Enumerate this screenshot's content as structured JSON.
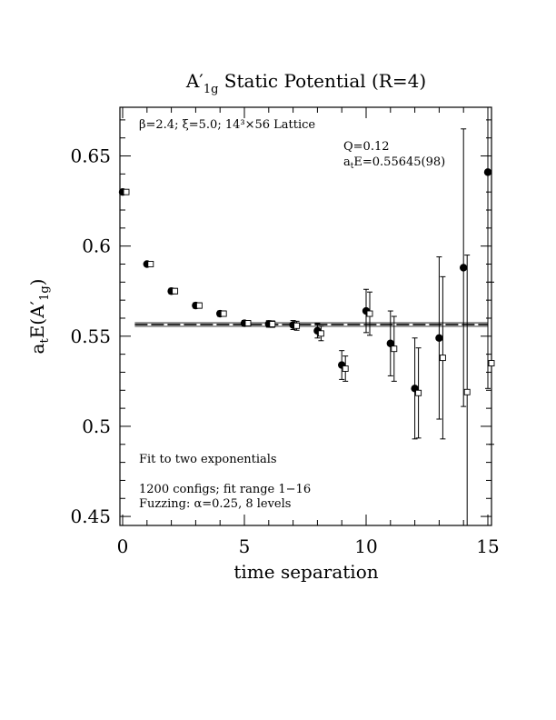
{
  "chart_data": {
    "type": "scatter",
    "title": {
      "main": "A",
      "prime": "′",
      "sub": "1g",
      "rest": " Static Potential (R=4)"
    },
    "xlabel": "time separation",
    "ylabel": {
      "a": "a",
      "t": "t",
      "e": "E(A",
      "prime": "′",
      "sub": "1g",
      "close": ")"
    },
    "xlim": [
      0,
      15
    ],
    "ylim": [
      0.445,
      0.677
    ],
    "x_ticks": [
      0,
      5,
      10,
      15
    ],
    "x_tick_labels": [
      "0",
      "5",
      "10",
      "15"
    ],
    "y_ticks": [
      0.45,
      0.5,
      0.55,
      0.6,
      0.65
    ],
    "y_tick_labels": [
      "0.45",
      "0.5",
      "0.55",
      "0.6",
      "0.65"
    ],
    "annotations": {
      "lattice": "β=2.4; ξ=5.0; 14³×56 Lattice",
      "q": "Q=0.12",
      "energy_prefix": "a",
      "energy_sub": "t",
      "energy_rest": "E=0.55645(98)",
      "fit": "Fit to two exponentials",
      "configs": "1200 configs; fit range 1−16",
      "fuzzing": "Fuzzing: α=0.25, 8 levels"
    },
    "fit": {
      "value": 0.55645,
      "error": 0.00098,
      "x_range": [
        0.5,
        15
      ]
    },
    "series": [
      {
        "marker": "filled-circle",
        "points": [
          {
            "x": 0,
            "y": 0.63,
            "err": 0.0012
          },
          {
            "x": 1,
            "y": 0.59,
            "err": 0.0012
          },
          {
            "x": 2,
            "y": 0.575,
            "err": 0.0015
          },
          {
            "x": 3,
            "y": 0.567,
            "err": 0.0015
          },
          {
            "x": 4,
            "y": 0.5625,
            "err": 0.0015
          },
          {
            "x": 5,
            "y": 0.5572,
            "err": 0.0015
          },
          {
            "x": 6,
            "y": 0.5568,
            "err": 0.0018
          },
          {
            "x": 7,
            "y": 0.5562,
            "err": 0.0025
          },
          {
            "x": 8,
            "y": 0.553,
            "err": 0.004
          },
          {
            "x": 9,
            "y": 0.534,
            "err": 0.008
          },
          {
            "x": 10,
            "y": 0.564,
            "err": 0.012
          },
          {
            "x": 11,
            "y": 0.546,
            "err": 0.018
          },
          {
            "x": 12,
            "y": 0.521,
            "err": 0.028
          },
          {
            "x": 13,
            "y": 0.549,
            "err": 0.045
          },
          {
            "x": 14,
            "y": 0.588,
            "err": 0.077
          },
          {
            "x": 15,
            "y": 0.641,
            "err": 0.12
          }
        ]
      },
      {
        "marker": "open-square",
        "points": [
          {
            "x": 0,
            "y": 0.63,
            "err": 0.0012
          },
          {
            "x": 1,
            "y": 0.59,
            "err": 0.0012
          },
          {
            "x": 2,
            "y": 0.575,
            "err": 0.0015
          },
          {
            "x": 3,
            "y": 0.567,
            "err": 0.0015
          },
          {
            "x": 4,
            "y": 0.5625,
            "err": 0.0015
          },
          {
            "x": 5,
            "y": 0.5572,
            "err": 0.0015
          },
          {
            "x": 6,
            "y": 0.5567,
            "err": 0.0018
          },
          {
            "x": 7,
            "y": 0.5558,
            "err": 0.0025
          },
          {
            "x": 8,
            "y": 0.5515,
            "err": 0.004
          },
          {
            "x": 9,
            "y": 0.532,
            "err": 0.007
          },
          {
            "x": 10,
            "y": 0.5625,
            "err": 0.012
          },
          {
            "x": 11,
            "y": 0.543,
            "err": 0.018
          },
          {
            "x": 12,
            "y": 0.5185,
            "err": 0.025
          },
          {
            "x": 13,
            "y": 0.538,
            "err": 0.045
          },
          {
            "x": 14,
            "y": 0.519,
            "err": 0.076
          },
          {
            "x": 15,
            "y": 0.535,
            "err": 0.045
          }
        ]
      }
    ]
  }
}
